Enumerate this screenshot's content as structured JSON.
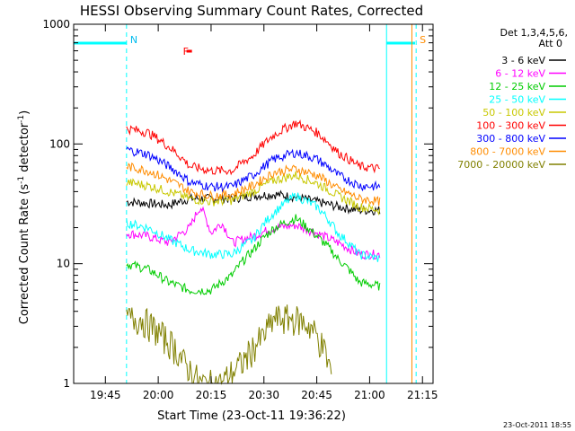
{
  "chart_data": {
    "type": "line",
    "title": "HESSI Observing Summary Count Rates, Corrected",
    "xlabel": "Start Time (23-Oct-11 19:36:22)",
    "ylabel_main": "Corrected Count Rate (s",
    "ylabel_sup1": "-1",
    "ylabel_mid": " detector",
    "ylabel_sup2": "-1",
    "ylabel_end": ")",
    "yscale": "log",
    "ylim": [
      1,
      1000
    ],
    "xlim_minutes": [
      19.6,
      21.3
    ],
    "x_ticks": [
      {
        "label": "19:45",
        "value": 19.75
      },
      {
        "label": "20:00",
        "value": 20.0
      },
      {
        "label": "20:15",
        "value": 20.25
      },
      {
        "label": "20:30",
        "value": 20.5
      },
      {
        "label": "20:45",
        "value": 20.75
      },
      {
        "label": "21:00",
        "value": 21.0
      },
      {
        "label": "21:15",
        "value": 21.25
      }
    ],
    "y_ticks": [
      {
        "label": "1",
        "value": 1
      },
      {
        "label": "10",
        "value": 10
      },
      {
        "label": "100",
        "value": 100
      },
      {
        "label": "1000",
        "value": 1000
      }
    ],
    "legend_title_1": "Det 1,3,4,5,6,",
    "legend_title_2": "Att 0",
    "legend_position": "right",
    "series": [
      {
        "name": "3 - 6 keV",
        "color": "#000000",
        "x": [
          19.85,
          19.95,
          20.05,
          20.15,
          20.25,
          20.35,
          20.45,
          20.55,
          20.65,
          20.75,
          20.85,
          20.95,
          21.05
        ],
        "values": [
          33,
          32,
          31,
          35,
          35,
          35,
          37,
          38,
          36,
          33,
          30,
          28,
          28
        ]
      },
      {
        "name": "6 - 12 keV",
        "color": "#ff00ff",
        "x": [
          19.85,
          19.95,
          20.05,
          20.15,
          20.2,
          20.25,
          20.3,
          20.35,
          20.45,
          20.55,
          20.65,
          20.75,
          20.85,
          20.95,
          21.05
        ],
        "values": [
          18,
          17,
          15,
          20,
          30,
          18,
          22,
          15,
          17,
          20,
          21,
          18,
          15,
          12,
          12
        ]
      },
      {
        "name": "12 - 25 keV",
        "color": "#00cc00",
        "x": [
          19.85,
          19.95,
          20.05,
          20.15,
          20.25,
          20.35,
          20.45,
          20.55,
          20.65,
          20.75,
          20.85,
          20.95,
          21.05
        ],
        "values": [
          10,
          9,
          7,
          6,
          6,
          8,
          13,
          20,
          24,
          17,
          11,
          7,
          6.5
        ]
      },
      {
        "name": "25 - 50 keV",
        "color": "#00ffff",
        "x": [
          19.85,
          19.95,
          20.05,
          20.15,
          20.25,
          20.35,
          20.45,
          20.55,
          20.65,
          20.75,
          20.85,
          20.95,
          21.05
        ],
        "values": [
          22,
          20,
          16,
          13,
          12,
          12,
          16,
          27,
          37,
          30,
          18,
          12,
          11
        ]
      },
      {
        "name": "50 - 100 keV",
        "color": "#c8c800",
        "x": [
          19.85,
          19.95,
          20.05,
          20.15,
          20.25,
          20.35,
          20.45,
          20.55,
          20.65,
          20.75,
          20.85,
          20.95,
          21.05
        ],
        "values": [
          48,
          45,
          40,
          35,
          33,
          34,
          40,
          50,
          55,
          47,
          37,
          30,
          28
        ]
      },
      {
        "name": "100 - 300 keV",
        "color": "#ff0000",
        "x": [
          19.85,
          19.95,
          20.05,
          20.15,
          20.25,
          20.35,
          20.45,
          20.55,
          20.65,
          20.75,
          20.85,
          20.95,
          21.05
        ],
        "values": [
          135,
          125,
          95,
          65,
          60,
          60,
          80,
          120,
          150,
          125,
          85,
          65,
          62
        ]
      },
      {
        "name": "300 - 800 keV",
        "color": "#0000ff",
        "x": [
          19.85,
          19.95,
          20.05,
          20.15,
          20.25,
          20.35,
          20.45,
          20.55,
          20.65,
          20.75,
          20.85,
          20.95,
          21.05
        ],
        "values": [
          90,
          82,
          65,
          48,
          44,
          44,
          55,
          75,
          85,
          75,
          55,
          45,
          44
        ]
      },
      {
        "name": "800 - 7000 keV",
        "color": "#ff8c00",
        "x": [
          19.85,
          19.95,
          20.05,
          20.15,
          20.25,
          20.35,
          20.45,
          20.55,
          20.65,
          20.75,
          20.85,
          20.95,
          21.05
        ],
        "values": [
          65,
          60,
          50,
          40,
          37,
          38,
          45,
          58,
          62,
          55,
          42,
          35,
          33
        ]
      },
      {
        "name": "7000 - 20000 keV",
        "color": "#808000",
        "x": [
          19.85,
          19.92,
          19.97,
          20.02,
          20.08,
          20.12,
          20.2,
          20.3,
          20.4,
          20.5,
          20.55,
          20.6,
          20.65,
          20.72,
          20.78,
          20.82
        ],
        "values": [
          3.5,
          3.5,
          3,
          2.5,
          2,
          1.5,
          1.0,
          1.0,
          1.5,
          2.5,
          3.5,
          3.5,
          3.5,
          3,
          2,
          1.2
        ]
      }
    ],
    "annotations": [
      {
        "text": "N",
        "color": "#00bbee",
        "x": 19.85
      },
      {
        "text": "F",
        "color": "#ff0000",
        "x": 20.1
      },
      {
        "text": "S",
        "color": "#ff8c00",
        "x": 21.22
      }
    ],
    "timestamp": "23-Oct-2011 18:55"
  }
}
